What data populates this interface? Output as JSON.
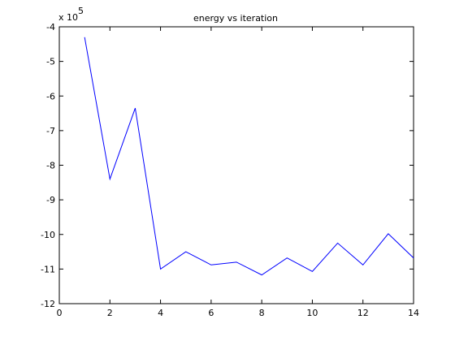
{
  "chart_data": {
    "type": "line",
    "title": "energy vs iteration",
    "xlabel": "",
    "ylabel": "",
    "y_exponent_label": "x 10",
    "y_exponent_power": "5",
    "xlim": [
      0,
      14
    ],
    "ylim": [
      -12,
      -4
    ],
    "x_ticks": [
      0,
      2,
      4,
      6,
      8,
      10,
      12,
      14
    ],
    "x_tick_labels": [
      "0",
      "2",
      "4",
      "6",
      "8",
      "10",
      "12",
      "14"
    ],
    "y_ticks": [
      -12,
      -11,
      -10,
      -9,
      -8,
      -7,
      -6,
      -5,
      -4
    ],
    "y_tick_labels": [
      "-12",
      "-11",
      "-10",
      "-9",
      "-8",
      "-7",
      "-6",
      "-5",
      "-4"
    ],
    "grid": false,
    "series": [
      {
        "color": "#0000ff",
        "x": [
          1,
          2,
          3,
          4,
          5,
          6,
          7,
          8,
          9,
          10,
          11,
          12,
          13,
          14
        ],
        "y": [
          -4.3,
          -8.4,
          -6.35,
          -11.0,
          -10.5,
          -10.88,
          -10.8,
          -11.17,
          -10.68,
          -11.07,
          -10.25,
          -10.88,
          -9.98,
          -10.68
        ]
      }
    ],
    "axis_color": "#000000"
  }
}
